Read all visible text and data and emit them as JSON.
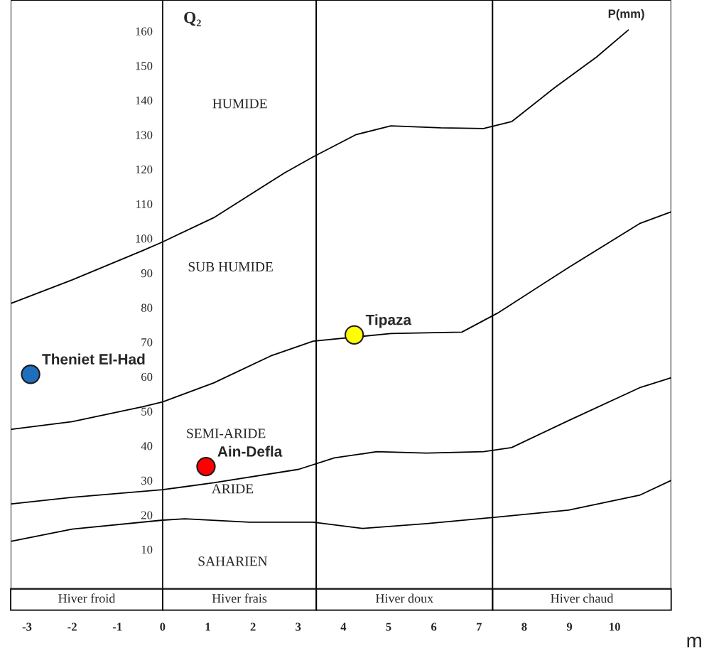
{
  "chart_data": {
    "type": "line",
    "xlabel": "m",
    "ylabel": "Q₂",
    "xlim": [
      -3.36,
      11.25
    ],
    "ylim": [
      -1.4,
      169
    ],
    "xticks": [
      -3,
      -2,
      -1,
      0,
      1,
      2,
      3,
      4,
      5,
      6,
      7,
      8,
      9,
      10
    ],
    "yticks": [
      10,
      20,
      30,
      40,
      50,
      60,
      70,
      80,
      90,
      100,
      110,
      120,
      130,
      140,
      150,
      160
    ],
    "grid": false,
    "legend": false,
    "annotations": [
      "P(mm)",
      "HUMIDE",
      "SUB HUMIDE",
      "SEMI-ARIDE",
      "ARIDE",
      "SAHARIEN"
    ],
    "bands": [
      {
        "axis": "x",
        "from": -3.36,
        "to": 0,
        "label": "Hiver froid",
        "color": "#ffffff"
      },
      {
        "axis": "x",
        "from": 0,
        "to": 3.4,
        "label": "Hiver frais",
        "color": "#ffffff"
      },
      {
        "axis": "x",
        "from": 3.4,
        "to": 7.3,
        "label": "Hiver doux",
        "color": "#ffffff"
      },
      {
        "axis": "x",
        "from": 7.3,
        "to": 11.25,
        "label": "Hiver chaud",
        "color": "#ffffff"
      }
    ],
    "series": [
      {
        "color": "#000000",
        "x": [
          -3.34,
          -2,
          -0.44,
          0,
          1.13,
          2.7,
          3.33,
          4.27,
          5.05,
          6.15,
          7.1,
          7.72,
          8.67,
          9.6,
          10.3
        ],
        "values": [
          81.3,
          88,
          96.5,
          99,
          106,
          119,
          123.6,
          130,
          132.6,
          132,
          131.8,
          133.8,
          143.6,
          152.5,
          160.3
        ]
      },
      {
        "color": "#000000",
        "x": [
          -3.34,
          -2,
          -0.44,
          0,
          1.13,
          2.39,
          3.33,
          5.05,
          6.62,
          7.41,
          8.98,
          10.55,
          11.25
        ],
        "values": [
          44.8,
          47,
          51.3,
          52.7,
          58.2,
          66,
          70.3,
          72.5,
          72.9,
          78.4,
          91.6,
          104.3,
          107.7
        ]
      },
      {
        "color": "#000000",
        "x": [
          -3.34,
          -2,
          0,
          1.13,
          3.01,
          3.8,
          4.74,
          5.84,
          7.1,
          7.72,
          8.98,
          10.55,
          11.25
        ],
        "values": [
          23.2,
          25.1,
          27.3,
          29.3,
          33.2,
          36.5,
          38.3,
          37.9,
          38.3,
          39.5,
          47.3,
          56.8,
          59.7
        ]
      },
      {
        "color": "#000000",
        "x": [
          -3.34,
          -2,
          0,
          0.5,
          1.92,
          3.33,
          4.43,
          5.84,
          7.41,
          8.98,
          10.55,
          11.25
        ],
        "values": [
          12.4,
          15.9,
          18.5,
          18.9,
          17.9,
          17.9,
          16.1,
          17.5,
          19.4,
          21.4,
          25.7,
          30
        ]
      },
      {
        "type": "scatter",
        "name": "Theniet El-Had",
        "color": "#1f6fbf",
        "marker": "circle",
        "x": [
          -2.92
        ],
        "values": [
          60.7
        ]
      },
      {
        "type": "scatter",
        "name": "Ain-Defla",
        "color": "#ff0000",
        "marker": "circle",
        "x": [
          0.96
        ],
        "values": [
          34
        ]
      },
      {
        "type": "scatter",
        "name": "Tipaza",
        "color": "#ffff00",
        "marker": "circle",
        "x": [
          4.24
        ],
        "values": [
          72.1
        ]
      }
    ]
  }
}
